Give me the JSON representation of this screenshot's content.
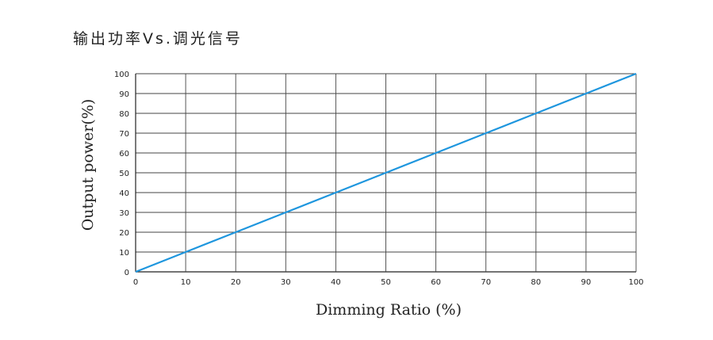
{
  "page": {
    "title": "输出功率Vs.调光信号"
  },
  "chart_data": {
    "type": "line",
    "title": "输出功率Vs.调光信号",
    "xlabel": "Dimming Ratio (%)",
    "ylabel": "Output power(%)",
    "xlim": [
      0,
      100
    ],
    "ylim": [
      0,
      100
    ],
    "x_ticks": [
      0,
      10,
      20,
      30,
      40,
      50,
      60,
      70,
      80,
      90,
      100
    ],
    "y_ticks": [
      0,
      10,
      20,
      30,
      40,
      50,
      60,
      70,
      80,
      90,
      100
    ],
    "grid": true,
    "series": [
      {
        "color": "#1e96de",
        "x": [
          0,
          10,
          20,
          30,
          40,
          50,
          60,
          70,
          80,
          90,
          100
        ],
        "y": [
          0,
          10,
          20,
          30,
          40,
          50,
          60,
          70,
          80,
          90,
          100
        ]
      }
    ]
  }
}
